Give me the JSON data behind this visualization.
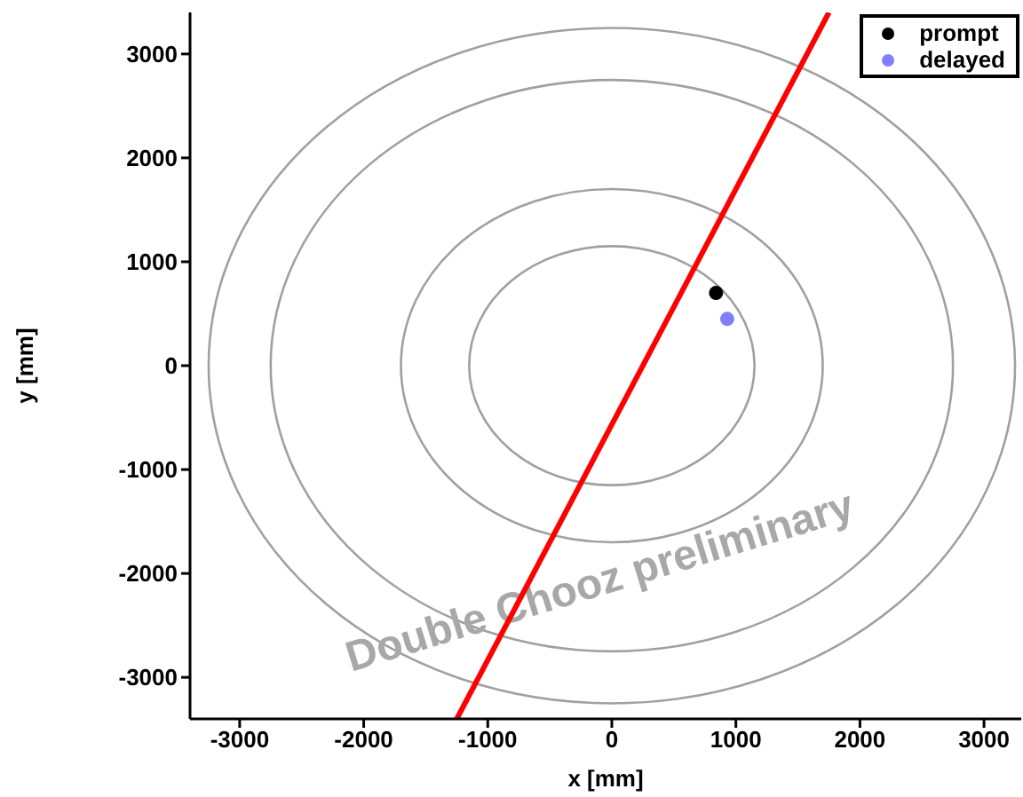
{
  "chart_data": {
    "type": "scatter",
    "xlabel": "x [mm]",
    "ylabel": "y [mm]",
    "xlim": [
      -3400,
      3300
    ],
    "ylim": [
      -3400,
      3400
    ],
    "xticks": [
      -3000,
      -2000,
      -1000,
      0,
      1000,
      2000,
      3000
    ],
    "yticks": [
      -3000,
      -2000,
      -1000,
      0,
      1000,
      2000,
      3000
    ],
    "grid": false,
    "legend": "top right",
    "marker": "circle",
    "annotations": [
      "Double Chooz preliminary"
    ],
    "series": [
      {
        "type": "line",
        "marker": "none",
        "color": "#ff0000",
        "x": [
          -1250,
          1750
        ],
        "values": [
          -3400,
          3400
        ]
      },
      {
        "name": "prompt",
        "color": "#000000",
        "x": [
          840
        ],
        "values": [
          700
        ]
      },
      {
        "name": "delayed",
        "color": "#8080ff",
        "x": [
          930
        ],
        "values": [
          450
        ]
      }
    ]
  }
}
